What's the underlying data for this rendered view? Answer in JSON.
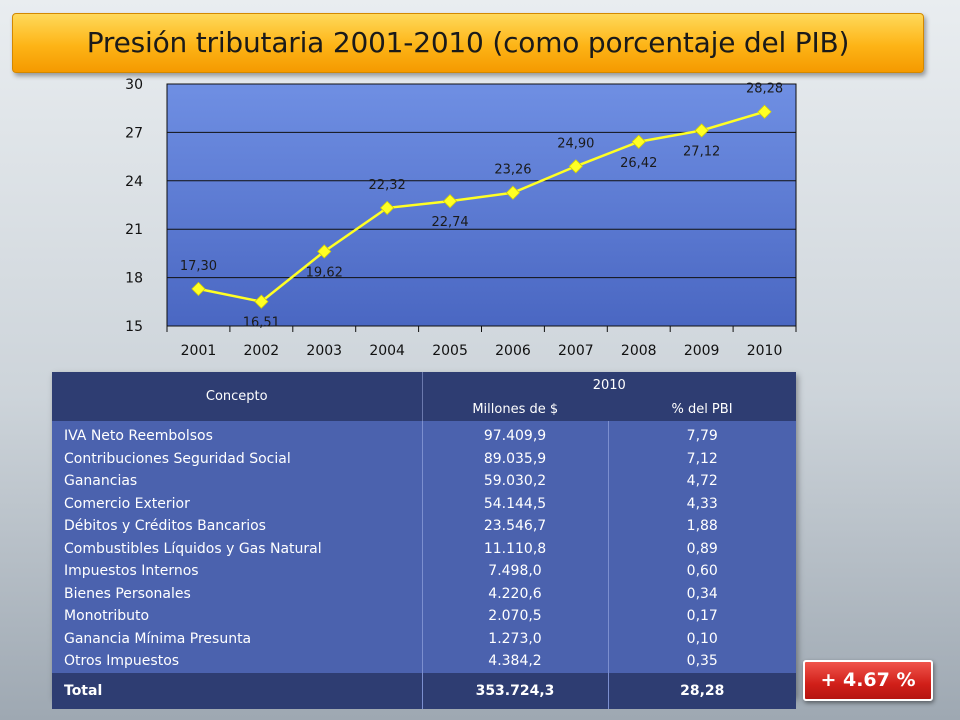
{
  "title": "Presión tributaria 2001-2010 (como porcentaje del PIB)",
  "chart_data": {
    "type": "line",
    "title": "",
    "xlabel": "",
    "ylabel": "",
    "categories": [
      "2001",
      "2002",
      "2003",
      "2004",
      "2005",
      "2006",
      "2007",
      "2008",
      "2009",
      "2010"
    ],
    "values": [
      17.3,
      16.51,
      19.62,
      22.32,
      22.74,
      23.26,
      24.9,
      26.42,
      27.12,
      28.28
    ],
    "data_labels": [
      "17,30",
      "16,51",
      "19,62",
      "22,32",
      "22,74",
      "23,26",
      "24,90",
      "26,42",
      "27,12",
      "28,28"
    ],
    "label_position": [
      "above",
      "below",
      "below",
      "above",
      "below",
      "above",
      "above",
      "below",
      "below",
      "above"
    ],
    "ylim": [
      15,
      30
    ],
    "yticks": [
      15,
      18,
      21,
      24,
      27,
      30
    ],
    "grid": true,
    "line_color": "#ffff24",
    "marker_color": "#ffff24",
    "plot_background": "#5f7fd6"
  },
  "table": {
    "header_concept": "Concepto",
    "header_year": "2010",
    "header_millions": "Millones de $",
    "header_pct": "% del PBI",
    "rows": [
      {
        "concept": "IVA Neto Reembolsos",
        "millions": "97.409,9",
        "pct": "7,79"
      },
      {
        "concept": "Contribuciones Seguridad Social",
        "millions": "89.035,9",
        "pct": "7,12"
      },
      {
        "concept": "Ganancias",
        "millions": "59.030,2",
        "pct": "4,72"
      },
      {
        "concept": "Comercio Exterior",
        "millions": "54.144,5",
        "pct": "4,33"
      },
      {
        "concept": "Débitos y Créditos Bancarios",
        "millions": "23.546,7",
        "pct": "1,88"
      },
      {
        "concept": "Combustibles Líquidos y Gas Natural",
        "millions": "11.110,8",
        "pct": "0,89"
      },
      {
        "concept": "Impuestos Internos",
        "millions": "7.498,0",
        "pct": "0,60"
      },
      {
        "concept": "Bienes Personales",
        "millions": "4.220,6",
        "pct": "0,34"
      },
      {
        "concept": "Monotributo",
        "millions": "2.070,5",
        "pct": "0,17"
      },
      {
        "concept": "Ganancia Mínima Presunta",
        "millions": "1.273,0",
        "pct": "0,10"
      },
      {
        "concept": "Otros Impuestos",
        "millions": "4.384,2",
        "pct": "0,35"
      }
    ],
    "total_label": "Total",
    "total_millions": "353.724,3",
    "total_pct": "28,28"
  },
  "badge": "+ 4.67 %",
  "colors": {
    "title_bar": "#fdb416",
    "table_header": "#2e3d72",
    "table_body": "#4b62ae",
    "badge": "#d11f19"
  }
}
